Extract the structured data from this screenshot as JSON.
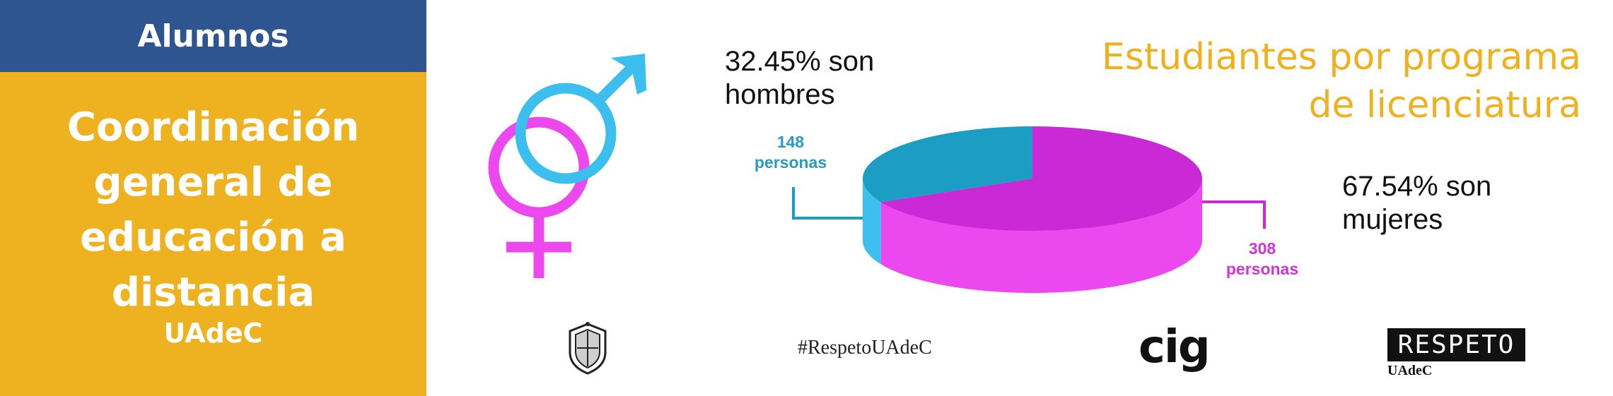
{
  "sidebar": {
    "header": "Alumnos",
    "title_lines": [
      "Coordinación",
      "general de",
      "educación a",
      "distancia"
    ],
    "subtitle": "UAdeC",
    "colors": {
      "header_bg": "#2e5590",
      "body_bg": "#eeb220"
    }
  },
  "chart_data": {
    "type": "pie",
    "title": "Estudiantes por programa de licenciatura",
    "categories": [
      "hombres",
      "mujeres"
    ],
    "values": [
      148,
      308
    ],
    "percent_labels": [
      "32.45% son hombres",
      "67.54% son mujeres"
    ],
    "data_labels": [
      {
        "number": "148",
        "unit": "personas"
      },
      {
        "number": "308",
        "unit": "personas"
      }
    ],
    "colors": {
      "men_top": "#1b9dc4",
      "men_side": "#3fbfee",
      "women_top": "#c92ad6",
      "women_side": "#ec48f0"
    }
  },
  "symbols": {
    "icon": "gender-symbols-icon",
    "male_color": "#3cbfee",
    "female_color": "#ec48ee"
  },
  "footer": {
    "hashtag": "#RespetoUAdeC",
    "cig_logo": "cig",
    "respeto_logo": "RESPETO",
    "respeto_sub": "UAdeC",
    "seal_icon": "university-seal-icon"
  }
}
